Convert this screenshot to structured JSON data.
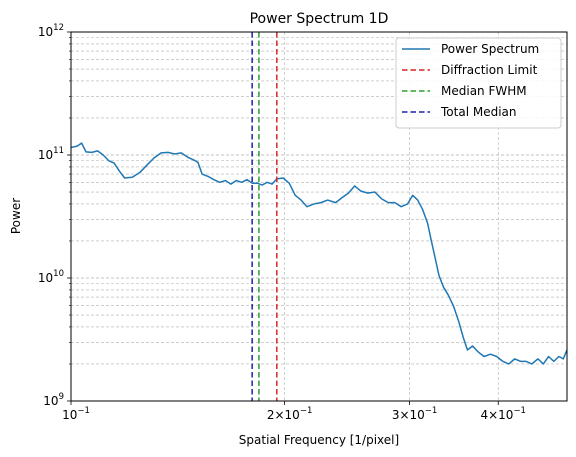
{
  "chart_data": {
    "type": "line",
    "title": "Power Spectrum 1D",
    "xlabel": "Spatial Frequency [1/pixel]",
    "ylabel": "Power",
    "x_scale": "log",
    "y_scale": "log",
    "xlim": [
      0.1,
      0.5
    ],
    "ylim": [
      1000000000.0,
      1000000000000.0
    ],
    "grid": "both (major and minor), dashed",
    "legend_position": "top-right",
    "x_ticks": [
      {
        "value": 0.1,
        "base": "10",
        "exp": "−1"
      },
      {
        "value": 0.2,
        "base": "2×10",
        "exp": "−1"
      },
      {
        "value": 0.3,
        "base": "3×10",
        "exp": "−1"
      },
      {
        "value": 0.4,
        "base": "4×10",
        "exp": "−1"
      }
    ],
    "y_ticks": [
      {
        "value": 1000000000.0,
        "base": "10",
        "exp": "9"
      },
      {
        "value": 10000000000.0,
        "base": "10",
        "exp": "10"
      },
      {
        "value": 100000000000.0,
        "base": "10",
        "exp": "11"
      },
      {
        "value": 1000000000000.0,
        "base": "10",
        "exp": "12"
      }
    ],
    "series": [
      {
        "name": "Power Spectrum",
        "color": "#1f77b4",
        "style": "solid",
        "points": [
          [
            0.1,
            115000000000.0
          ],
          [
            0.102,
            118000000000.0
          ],
          [
            0.1035,
            125000000000.0
          ],
          [
            0.105,
            106000000000.0
          ],
          [
            0.107,
            105000000000.0
          ],
          [
            0.109,
            108000000000.0
          ],
          [
            0.111,
            100000000000.0
          ],
          [
            0.113,
            90000000000.0
          ],
          [
            0.115,
            86000000000.0
          ],
          [
            0.117,
            74000000000.0
          ],
          [
            0.119,
            65000000000.0
          ],
          [
            0.122,
            66000000000.0
          ],
          [
            0.125,
            72000000000.0
          ],
          [
            0.128,
            83000000000.0
          ],
          [
            0.131,
            95000000000.0
          ],
          [
            0.134,
            104000000000.0
          ],
          [
            0.137,
            105000000000.0
          ],
          [
            0.14,
            102000000000.0
          ],
          [
            0.143,
            104000000000.0
          ],
          [
            0.146,
            96000000000.0
          ],
          [
            0.149,
            91000000000.0
          ],
          [
            0.151,
            87000000000.0
          ],
          [
            0.153,
            70000000000.0
          ],
          [
            0.156,
            67000000000.0
          ],
          [
            0.159,
            63000000000.0
          ],
          [
            0.162,
            60000000000.0
          ],
          [
            0.165,
            62000000000.0
          ],
          [
            0.168,
            58000000000.0
          ],
          [
            0.171,
            62000000000.0
          ],
          [
            0.174,
            60000000000.0
          ],
          [
            0.177,
            63000000000.0
          ],
          [
            0.18,
            59000000000.0
          ],
          [
            0.183,
            59000000000.0
          ],
          [
            0.186,
            57000000000.0
          ],
          [
            0.189,
            60000000000.0
          ],
          [
            0.192,
            58000000000.0
          ],
          [
            0.195,
            64000000000.0
          ],
          [
            0.199,
            65000000000.0
          ],
          [
            0.203,
            59000000000.0
          ],
          [
            0.207,
            47000000000.0
          ],
          [
            0.211,
            43000000000.0
          ],
          [
            0.215,
            38000000000.0
          ],
          [
            0.22,
            40000000000.0
          ],
          [
            0.225,
            41000000000.0
          ],
          [
            0.23,
            43000000000.0
          ],
          [
            0.236,
            41000000000.0
          ],
          [
            0.241,
            45000000000.0
          ],
          [
            0.246,
            49000000000.0
          ],
          [
            0.251,
            56000000000.0
          ],
          [
            0.256,
            51000000000.0
          ],
          [
            0.262,
            49000000000.0
          ],
          [
            0.268,
            50000000000.0
          ],
          [
            0.274,
            44000000000.0
          ],
          [
            0.28,
            41000000000.0
          ],
          [
            0.286,
            41000000000.0
          ],
          [
            0.292,
            38000000000.0
          ],
          [
            0.298,
            40000000000.0
          ],
          [
            0.303,
            47000000000.0
          ],
          [
            0.308,
            43000000000.0
          ],
          [
            0.313,
            36000000000.0
          ],
          [
            0.318,
            28000000000.0
          ],
          [
            0.322,
            20000000000.0
          ],
          [
            0.326,
            14500000000.0
          ],
          [
            0.33,
            10500000000.0
          ],
          [
            0.335,
            8400000000.0
          ],
          [
            0.34,
            7300000000.0
          ],
          [
            0.346,
            5900000000.0
          ],
          [
            0.352,
            4400000000.0
          ],
          [
            0.357,
            3300000000.0
          ],
          [
            0.362,
            2600000000.0
          ],
          [
            0.368,
            2800000000.0
          ],
          [
            0.375,
            2500000000.0
          ],
          [
            0.382,
            2300000000.0
          ],
          [
            0.39,
            2400000000.0
          ],
          [
            0.398,
            2300000000.0
          ],
          [
            0.406,
            2100000000.0
          ],
          [
            0.414,
            2000000000.0
          ],
          [
            0.422,
            2200000000.0
          ],
          [
            0.43,
            2100000000.0
          ],
          [
            0.438,
            2100000000.0
          ],
          [
            0.446,
            2000000000.0
          ],
          [
            0.455,
            2200000000.0
          ],
          [
            0.463,
            2000000000.0
          ],
          [
            0.471,
            2300000000.0
          ],
          [
            0.479,
            2100000000.0
          ],
          [
            0.487,
            2300000000.0
          ],
          [
            0.494,
            2200000000.0
          ],
          [
            0.5,
            2600000000.0
          ]
        ]
      }
    ],
    "vlines": [
      {
        "name": "Diffraction Limit",
        "x": 0.195,
        "color": "#d62728"
      },
      {
        "name": "Median FWHM",
        "x": 0.184,
        "color": "#2ca02c"
      },
      {
        "name": "Total Median",
        "x": 0.18,
        "color": "#1f1fb4"
      }
    ]
  }
}
